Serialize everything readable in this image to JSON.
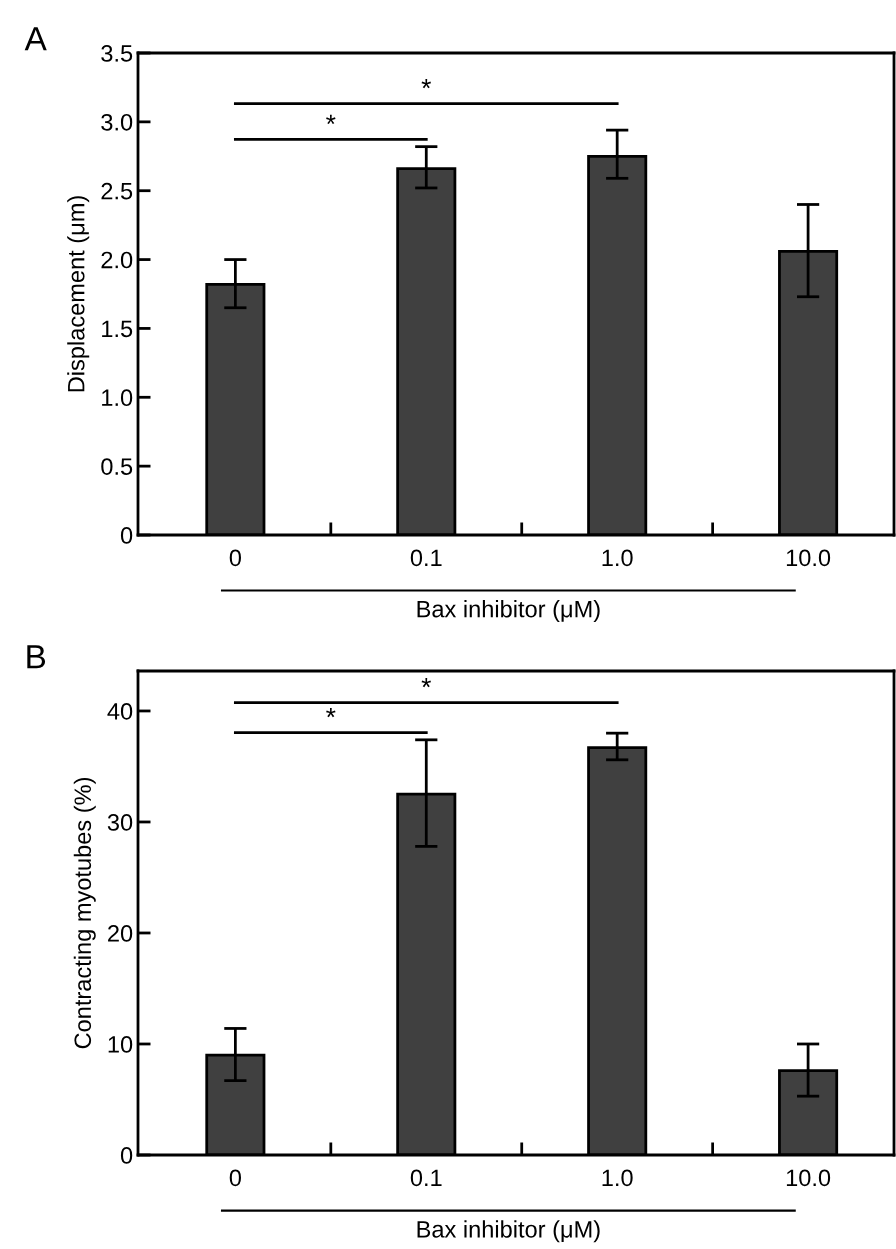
{
  "chart_data": [
    {
      "type": "bar",
      "title": "A",
      "xlabel": "Bax inhibitor (μM)",
      "ylabel": "Displacement (μm)",
      "categories": [
        "0",
        "0.1",
        "1.0",
        "10.0"
      ],
      "values": [
        1.82,
        2.66,
        2.75,
        2.06
      ],
      "errors": [
        [
          1.65,
          2.0
        ],
        [
          2.52,
          2.82
        ],
        [
          2.59,
          2.94
        ],
        [
          1.73,
          2.4
        ]
      ],
      "color": "#404040",
      "ylim": [
        0,
        3.5
      ],
      "yticks": [
        {
          "value": 0,
          "label": "0"
        },
        0.5,
        {
          "value": 1,
          "label": "1.0"
        },
        1.5,
        {
          "value": 2,
          "label": "2.0"
        },
        2.5,
        {
          "value": 3,
          "label": "3.0"
        },
        3.5
      ],
      "annotations": [
        "*",
        "*"
      ]
    },
    {
      "type": "bar",
      "title": "B",
      "xlabel": "Bax inhibitor (μM)",
      "ylabel": "Contracting myotubes (%)",
      "categories": [
        "0",
        "0.1",
        "1.0",
        "10.0"
      ],
      "values": [
        9.0,
        32.5,
        36.7,
        7.6
      ],
      "errors": [
        [
          6.7,
          11.4
        ],
        [
          27.8,
          37.4
        ],
        [
          35.6,
          38.0
        ],
        [
          5.3,
          10.0
        ]
      ],
      "color": "#404040",
      "ylim": [
        0,
        43.6
      ],
      "yticks": [
        0,
        10,
        20,
        30,
        40
      ],
      "annotations": [
        "*",
        "*"
      ]
    }
  ]
}
